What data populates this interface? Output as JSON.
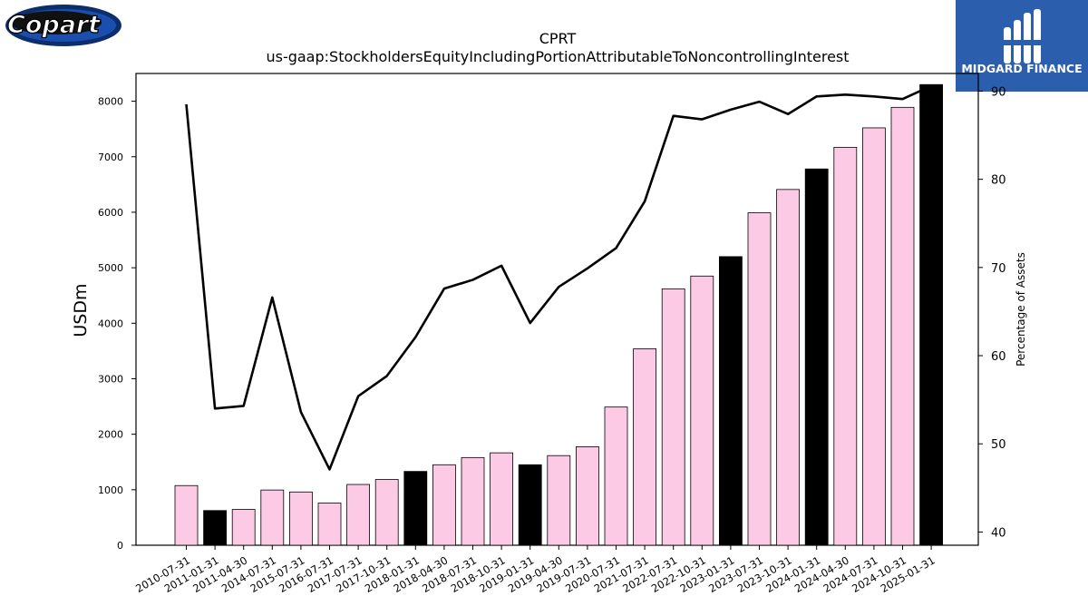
{
  "company_logo": {
    "text": "Copart"
  },
  "brand_logo": {
    "text": "MIDGARD FINANCE"
  },
  "chart_data": {
    "type": "bar",
    "title": "CPRT",
    "subtitle": "us-gaap:StockholdersEquityIncludingPortionAttributableToNoncontrollingInterest",
    "ylabel": "USDm",
    "y2label": "Percentage of Assets",
    "ylim": [
      0,
      8500
    ],
    "y2lim": [
      38.5,
      92
    ],
    "yticks": [
      0,
      1000,
      2000,
      3000,
      4000,
      5000,
      6000,
      7000,
      8000
    ],
    "y2ticks": [
      40,
      50,
      60,
      70,
      80,
      90
    ],
    "grid": false,
    "categories": [
      "2010-07-31",
      "2011-01-31",
      "2011-04-30",
      "2014-07-31",
      "2015-07-31",
      "2016-07-31",
      "2017-07-31",
      "2017-10-31",
      "2018-01-31",
      "2018-04-30",
      "2018-07-31",
      "2018-10-31",
      "2019-01-31",
      "2019-04-30",
      "2019-07-31",
      "2020-07-31",
      "2021-07-31",
      "2022-07-31",
      "2022-10-31",
      "2023-01-31",
      "2023-07-31",
      "2023-10-31",
      "2024-01-31",
      "2024-04-30",
      "2024-07-31",
      "2024-10-31",
      "2025-01-31"
    ],
    "series": [
      {
        "values": [
          1075,
          625,
          645,
          995,
          960,
          760,
          1095,
          1185,
          1330,
          1450,
          1580,
          1665,
          1450,
          1615,
          1775,
          2490,
          3540,
          4620,
          4850,
          5200,
          5990,
          6410,
          6780,
          7170,
          7520,
          7890,
          8300
        ],
        "colors": [
          "#fccae4",
          "#000000",
          "#fccae4",
          "#fccae4",
          "#fccae4",
          "#fccae4",
          "#fccae4",
          "#fccae4",
          "#000000",
          "#fccae4",
          "#fccae4",
          "#fccae4",
          "#000000",
          "#fccae4",
          "#fccae4",
          "#fccae4",
          "#fccae4",
          "#fccae4",
          "#fccae4",
          "#000000",
          "#fccae4",
          "#fccae4",
          "#000000",
          "#fccae4",
          "#fccae4",
          "#fccae4",
          "#000000"
        ]
      },
      {
        "type": "line",
        "axis": "right",
        "color": "#000000",
        "values": [
          88.5,
          54.0,
          54.3,
          66.6,
          53.6,
          47.1,
          55.4,
          57.7,
          62.1,
          67.6,
          68.6,
          70.2,
          63.7,
          67.8,
          69.9,
          72.2,
          77.5,
          87.2,
          86.8,
          87.9,
          88.8,
          87.4,
          89.4,
          89.6,
          89.4,
          89.1,
          90.6
        ]
      }
    ]
  }
}
